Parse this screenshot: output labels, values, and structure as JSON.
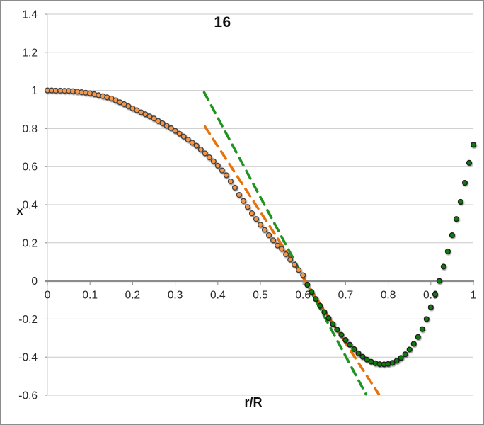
{
  "chart_data": {
    "type": "scatter",
    "title": "16",
    "xlabel": "r/R",
    "ylabel": "x",
    "xlim": [
      0,
      1
    ],
    "ylim": [
      -0.6,
      1.4
    ],
    "grid": "horizontal-only",
    "legend": "none",
    "x_ticks": [
      {
        "v": 0.0,
        "label": "0"
      },
      {
        "v": 0.1,
        "label": "0.1"
      },
      {
        "v": 0.2,
        "label": "0.2"
      },
      {
        "v": 0.3,
        "label": "0.3"
      },
      {
        "v": 0.4,
        "label": "0.4"
      },
      {
        "v": 0.5,
        "label": "0.5"
      },
      {
        "v": 0.6,
        "label": "0.6"
      },
      {
        "v": 0.7,
        "label": "0.7"
      },
      {
        "v": 0.8,
        "label": "0.8"
      },
      {
        "v": 0.9,
        "label": "0.9"
      },
      {
        "v": 1.0,
        "label": "1"
      }
    ],
    "y_ticks": [
      {
        "v": 1.4,
        "label": "1.4"
      },
      {
        "v": 1.2,
        "label": "1.2"
      },
      {
        "v": 1.0,
        "label": "1"
      },
      {
        "v": 0.8,
        "label": "0.8"
      },
      {
        "v": 0.6,
        "label": "0.6"
      },
      {
        "v": 0.4,
        "label": "0.4"
      },
      {
        "v": 0.2,
        "label": "0.2"
      },
      {
        "v": 0.0,
        "label": "0"
      },
      {
        "v": -0.2,
        "label": "-0.2"
      },
      {
        "v": -0.4,
        "label": "-0.4"
      },
      {
        "v": -0.6,
        "label": "-0.6"
      }
    ],
    "series": [
      {
        "name": "inner-branch-orange-circles",
        "marker": "circle",
        "fill": "#F79646",
        "stroke": "#3F3F3F",
        "points": [
          [
            0.0,
            1.0
          ],
          [
            0.01,
            1.0
          ],
          [
            0.02,
            0.999
          ],
          [
            0.03,
            0.999
          ],
          [
            0.04,
            0.998
          ],
          [
            0.05,
            0.998
          ],
          [
            0.06,
            0.996
          ],
          [
            0.07,
            0.994
          ],
          [
            0.08,
            0.991
          ],
          [
            0.09,
            0.988
          ],
          [
            0.1,
            0.985
          ],
          [
            0.11,
            0.98
          ],
          [
            0.12,
            0.975
          ],
          [
            0.13,
            0.97
          ],
          [
            0.14,
            0.964
          ],
          [
            0.15,
            0.958
          ],
          [
            0.16,
            0.948
          ],
          [
            0.17,
            0.938
          ],
          [
            0.18,
            0.928
          ],
          [
            0.19,
            0.917
          ],
          [
            0.2,
            0.906
          ],
          [
            0.21,
            0.896
          ],
          [
            0.22,
            0.885
          ],
          [
            0.23,
            0.875
          ],
          [
            0.24,
            0.864
          ],
          [
            0.25,
            0.853
          ],
          [
            0.26,
            0.84
          ],
          [
            0.27,
            0.828
          ],
          [
            0.28,
            0.815
          ],
          [
            0.29,
            0.802
          ],
          [
            0.3,
            0.788
          ],
          [
            0.31,
            0.773
          ],
          [
            0.32,
            0.758
          ],
          [
            0.33,
            0.742
          ],
          [
            0.34,
            0.726
          ],
          [
            0.35,
            0.71
          ],
          [
            0.36,
            0.69
          ],
          [
            0.37,
            0.67
          ],
          [
            0.38,
            0.649
          ],
          [
            0.39,
            0.628
          ],
          [
            0.4,
            0.605
          ],
          [
            0.41,
            0.58
          ],
          [
            0.42,
            0.555
          ],
          [
            0.43,
            0.523
          ],
          [
            0.44,
            0.49
          ],
          [
            0.45,
            0.452
          ],
          [
            0.46,
            0.42
          ],
          [
            0.47,
            0.388
          ],
          [
            0.48,
            0.355
          ],
          [
            0.49,
            0.325
          ],
          [
            0.5,
            0.295
          ],
          [
            0.51,
            0.268
          ],
          [
            0.52,
            0.24
          ],
          [
            0.53,
            0.213
          ],
          [
            0.54,
            0.186
          ],
          [
            0.55,
            0.168
          ],
          [
            0.56,
            0.14
          ],
          [
            0.57,
            0.112
          ],
          [
            0.58,
            0.085
          ],
          [
            0.59,
            0.057
          ],
          [
            0.6,
            0.03
          ]
        ]
      },
      {
        "name": "outer-branch-green-circles",
        "marker": "circle",
        "fill": "#0C7C0C",
        "stroke": "#1A1A1A",
        "points": [
          [
            0.61,
            -0.02
          ],
          [
            0.62,
            -0.058
          ],
          [
            0.63,
            -0.095
          ],
          [
            0.64,
            -0.13
          ],
          [
            0.65,
            -0.163
          ],
          [
            0.66,
            -0.195
          ],
          [
            0.67,
            -0.226
          ],
          [
            0.68,
            -0.255
          ],
          [
            0.69,
            -0.283
          ],
          [
            0.7,
            -0.31
          ],
          [
            0.71,
            -0.335
          ],
          [
            0.72,
            -0.358
          ],
          [
            0.73,
            -0.38
          ],
          [
            0.74,
            -0.398
          ],
          [
            0.75,
            -0.413
          ],
          [
            0.76,
            -0.424
          ],
          [
            0.77,
            -0.432
          ],
          [
            0.78,
            -0.437
          ],
          [
            0.79,
            -0.438
          ],
          [
            0.8,
            -0.436
          ],
          [
            0.81,
            -0.43
          ],
          [
            0.82,
            -0.419
          ],
          [
            0.83,
            -0.404
          ],
          [
            0.84,
            -0.385
          ],
          [
            0.85,
            -0.36
          ],
          [
            0.86,
            -0.33
          ],
          [
            0.87,
            -0.294
          ],
          [
            0.88,
            -0.253
          ],
          [
            0.89,
            -0.2
          ],
          [
            0.9,
            -0.138
          ],
          [
            0.91,
            -0.07
          ],
          [
            0.92,
            0.0
          ],
          [
            0.93,
            0.075
          ],
          [
            0.94,
            0.155
          ],
          [
            0.95,
            0.24
          ],
          [
            0.96,
            0.325
          ],
          [
            0.97,
            0.415
          ],
          [
            0.98,
            0.515
          ],
          [
            0.99,
            0.62
          ],
          [
            1.0,
            0.715
          ]
        ]
      }
    ],
    "lines": [
      {
        "name": "green-dashed-tangent",
        "style": "dashed",
        "color": "#1F941F",
        "x1": 0.368,
        "y1": 0.99,
        "x2": 0.748,
        "y2": -0.595
      },
      {
        "name": "orange-dashed-tangent",
        "style": "dashed",
        "color": "#E8720C",
        "x1": 0.37,
        "y1": 0.81,
        "x2": 0.778,
        "y2": -0.595
      }
    ],
    "colors": {
      "gridline": "#C9C9C9",
      "zero_axis": "#8C8C8C",
      "axis_line": "#C9C9C9",
      "tick_mark": "#8C8C8C",
      "tick_label": "#262626",
      "frame_border": "#8C8C8C"
    }
  }
}
